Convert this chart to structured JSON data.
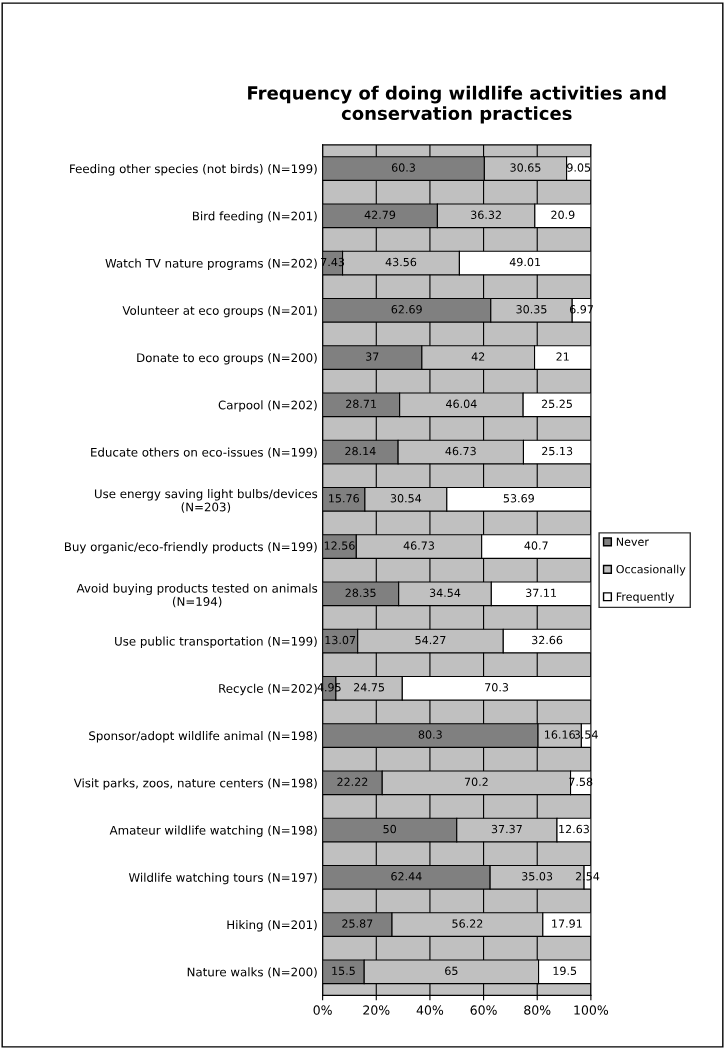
{
  "chart_data": {
    "type": "bar",
    "orientation": "horizontal",
    "stacked": true,
    "title": "Frequency of doing wildlife activities and conservation practices",
    "categories": [
      "Feeding other species (not birds) (N=199)",
      "Bird feeding (N=201)",
      "Watch TV nature programs (N=202)",
      "Volunteer at eco groups (N=201)",
      "Donate to eco groups (N=200)",
      "Carpool (N=202)",
      "Educate others on eco-issues (N=199)",
      "Use energy saving light bulbs/devices\n(N=203)",
      "Buy organic/eco-friendly products (N=199)",
      "Avoid buying products tested on animals\n(N=194)",
      "Use public transportation (N=199)",
      "Recycle (N=202)",
      "Sponsor/adopt wildlife animal (N=198)",
      "Visit parks, zoos, nature centers (N=198)",
      "Amateur wildlife watching (N=198)",
      "Wildlife watching tours (N=197)",
      "Hiking (N=201)",
      "Nature walks (N=200)"
    ],
    "series": [
      {
        "name": "Never",
        "color": "#808080",
        "values": [
          60.3,
          42.79,
          7.43,
          62.69,
          37,
          28.71,
          28.14,
          15.76,
          12.56,
          28.35,
          13.07,
          4.95,
          80.3,
          22.22,
          50,
          62.44,
          25.87,
          15.5
        ]
      },
      {
        "name": "Occasionally",
        "color": "#c0c0c0",
        "values": [
          30.65,
          36.32,
          43.56,
          30.35,
          42,
          46.04,
          46.73,
          30.54,
          46.73,
          34.54,
          54.27,
          24.75,
          16.16,
          70.2,
          37.37,
          35.03,
          56.22,
          65
        ]
      },
      {
        "name": "Frequently",
        "color": "#ffffff",
        "values": [
          9.05,
          20.9,
          49.01,
          6.97,
          21,
          25.25,
          25.13,
          53.69,
          40.7,
          37.11,
          32.66,
          70.3,
          3.54,
          7.58,
          12.63,
          2.54,
          17.91,
          19.5
        ]
      }
    ],
    "xlim": [
      0,
      100
    ],
    "xticks": [
      {
        "value": 0,
        "label": "0%"
      },
      {
        "value": 20,
        "label": "20%"
      },
      {
        "value": 40,
        "label": "40%"
      },
      {
        "value": 60,
        "label": "60%"
      },
      {
        "value": 80,
        "label": "80%"
      },
      {
        "value": 100,
        "label": "100%"
      }
    ],
    "data_labels": true,
    "grid": "x",
    "legend": "right"
  }
}
